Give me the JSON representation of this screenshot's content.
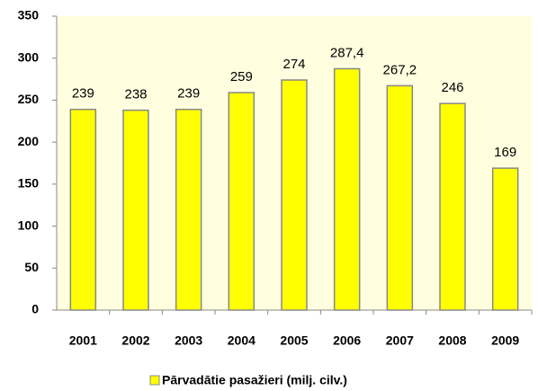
{
  "chart_data": {
    "type": "bar",
    "categories": [
      "2001",
      "2002",
      "2003",
      "2004",
      "2005",
      "2006",
      "2007",
      "2008",
      "2009"
    ],
    "series": [
      {
        "name": "Pārvadātie pasažieri (milj. cilv.)",
        "color": "#ffff00",
        "values": [
          239,
          238,
          239,
          259,
          274,
          287.4,
          267.2,
          246,
          169
        ],
        "value_labels": [
          "239",
          "238",
          "239",
          "259",
          "274",
          "287,4",
          "267,2",
          "246",
          "169"
        ]
      }
    ],
    "ylim": [
      0,
      350
    ],
    "yticks": [
      0,
      50,
      100,
      150,
      200,
      250,
      300,
      350
    ],
    "grid": false,
    "legend": "bottom"
  }
}
